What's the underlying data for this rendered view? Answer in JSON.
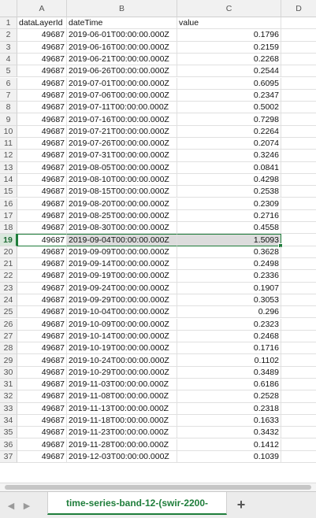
{
  "columns": [
    "A",
    "B",
    "C",
    "D"
  ],
  "header_row": {
    "a": "dataLayerId",
    "b": "dateTime",
    "c": "value"
  },
  "rows": [
    {
      "n": "2",
      "a": "49687",
      "b": "2019-06-01T00:00:00.000Z",
      "c": "0.1796"
    },
    {
      "n": "3",
      "a": "49687",
      "b": "2019-06-16T00:00:00.000Z",
      "c": "0.2159"
    },
    {
      "n": "4",
      "a": "49687",
      "b": "2019-06-21T00:00:00.000Z",
      "c": "0.2268"
    },
    {
      "n": "5",
      "a": "49687",
      "b": "2019-06-26T00:00:00.000Z",
      "c": "0.2544"
    },
    {
      "n": "6",
      "a": "49687",
      "b": "2019-07-01T00:00:00.000Z",
      "c": "0.6095"
    },
    {
      "n": "7",
      "a": "49687",
      "b": "2019-07-06T00:00:00.000Z",
      "c": "0.2347"
    },
    {
      "n": "8",
      "a": "49687",
      "b": "2019-07-11T00:00:00.000Z",
      "c": "0.5002"
    },
    {
      "n": "9",
      "a": "49687",
      "b": "2019-07-16T00:00:00.000Z",
      "c": "0.7298"
    },
    {
      "n": "10",
      "a": "49687",
      "b": "2019-07-21T00:00:00.000Z",
      "c": "0.2264"
    },
    {
      "n": "11",
      "a": "49687",
      "b": "2019-07-26T00:00:00.000Z",
      "c": "0.2074"
    },
    {
      "n": "12",
      "a": "49687",
      "b": "2019-07-31T00:00:00.000Z",
      "c": "0.3246"
    },
    {
      "n": "13",
      "a": "49687",
      "b": "2019-08-05T00:00:00.000Z",
      "c": "0.0841"
    },
    {
      "n": "14",
      "a": "49687",
      "b": "2019-08-10T00:00:00.000Z",
      "c": "0.4298"
    },
    {
      "n": "15",
      "a": "49687",
      "b": "2019-08-15T00:00:00.000Z",
      "c": "0.2538"
    },
    {
      "n": "16",
      "a": "49687",
      "b": "2019-08-20T00:00:00.000Z",
      "c": "0.2309"
    },
    {
      "n": "17",
      "a": "49687",
      "b": "2019-08-25T00:00:00.000Z",
      "c": "0.2716"
    },
    {
      "n": "18",
      "a": "49687",
      "b": "2019-08-30T00:00:00.000Z",
      "c": "0.4558"
    },
    {
      "n": "19",
      "a": "49687",
      "b": "2019-09-04T00:00:00.000Z",
      "c": "1.5093"
    },
    {
      "n": "20",
      "a": "49687",
      "b": "2019-09-09T00:00:00.000Z",
      "c": "0.3628"
    },
    {
      "n": "21",
      "a": "49687",
      "b": "2019-09-14T00:00:00.000Z",
      "c": "0.2498"
    },
    {
      "n": "22",
      "a": "49687",
      "b": "2019-09-19T00:00:00.000Z",
      "c": "0.2336"
    },
    {
      "n": "23",
      "a": "49687",
      "b": "2019-09-24T00:00:00.000Z",
      "c": "0.1907"
    },
    {
      "n": "24",
      "a": "49687",
      "b": "2019-09-29T00:00:00.000Z",
      "c": "0.3053"
    },
    {
      "n": "25",
      "a": "49687",
      "b": "2019-10-04T00:00:00.000Z",
      "c": "0.296"
    },
    {
      "n": "26",
      "a": "49687",
      "b": "2019-10-09T00:00:00.000Z",
      "c": "0.2323"
    },
    {
      "n": "27",
      "a": "49687",
      "b": "2019-10-14T00:00:00.000Z",
      "c": "0.2468"
    },
    {
      "n": "28",
      "a": "49687",
      "b": "2019-10-19T00:00:00.000Z",
      "c": "0.1716"
    },
    {
      "n": "29",
      "a": "49687",
      "b": "2019-10-24T00:00:00.000Z",
      "c": "0.1102"
    },
    {
      "n": "30",
      "a": "49687",
      "b": "2019-10-29T00:00:00.000Z",
      "c": "0.3489"
    },
    {
      "n": "31",
      "a": "49687",
      "b": "2019-11-03T00:00:00.000Z",
      "c": "0.6186"
    },
    {
      "n": "32",
      "a": "49687",
      "b": "2019-11-08T00:00:00.000Z",
      "c": "0.2528"
    },
    {
      "n": "33",
      "a": "49687",
      "b": "2019-11-13T00:00:00.000Z",
      "c": "0.2318"
    },
    {
      "n": "34",
      "a": "49687",
      "b": "2019-11-18T00:00:00.000Z",
      "c": "0.1633"
    },
    {
      "n": "35",
      "a": "49687",
      "b": "2019-11-23T00:00:00.000Z",
      "c": "0.3432"
    },
    {
      "n": "36",
      "a": "49687",
      "b": "2019-11-28T00:00:00.000Z",
      "c": "0.1412"
    },
    {
      "n": "37",
      "a": "49687",
      "b": "2019-12-03T00:00:00.000Z",
      "c": "0.1039"
    }
  ],
  "selected_row": "19",
  "sheet_tab_label": "time-series-band-12-(swir-2200-",
  "add_sheet_label": "+",
  "icons": {
    "prev": "chevron-left-icon",
    "next": "chevron-right-icon",
    "add": "plus-icon"
  },
  "colors": {
    "accent": "#1e7d3a",
    "selection_fill": "#dcdcdc",
    "header_bg": "#f1f1f1"
  }
}
